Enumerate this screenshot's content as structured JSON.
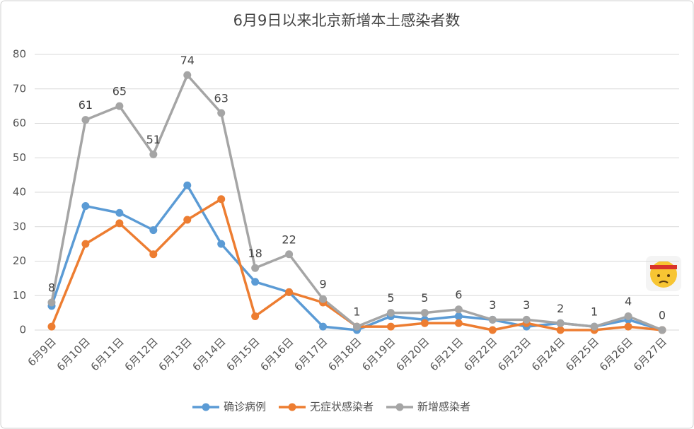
{
  "chart_data": {
    "type": "line",
    "title": "6月9日以来北京新增本土感染者数",
    "categories": [
      "6月9日",
      "6月10日",
      "6月11日",
      "6月12日",
      "6月13日",
      "6月14日",
      "6月15日",
      "6月16日",
      "6月17日",
      "6月18日",
      "6月19日",
      "6月20日",
      "6月21日",
      "6月22日",
      "6月23日",
      "6月24日",
      "6月25日",
      "6月26日",
      "6月27日"
    ],
    "series": [
      {
        "name": "确诊病例",
        "color": "#5b9bd5",
        "values": [
          7,
          36,
          34,
          29,
          42,
          25,
          14,
          11,
          1,
          0,
          4,
          3,
          4,
          3,
          1,
          2,
          1,
          3,
          0
        ]
      },
      {
        "name": "无症状感染者",
        "color": "#ed7d31",
        "values": [
          1,
          25,
          31,
          22,
          32,
          38,
          4,
          11,
          8,
          1,
          1,
          2,
          2,
          0,
          2,
          0,
          0,
          1,
          0
        ]
      },
      {
        "name": "新增感染者",
        "color": "#a5a5a5",
        "values": [
          8,
          61,
          65,
          51,
          74,
          63,
          18,
          22,
          9,
          1,
          5,
          5,
          6,
          3,
          3,
          2,
          1,
          4,
          0
        ],
        "show_labels": true
      }
    ],
    "ylim": [
      0,
      80
    ],
    "yticks": [
      0,
      10,
      20,
      30,
      40,
      50,
      60,
      70,
      80
    ],
    "grid": true,
    "legend": "bottom"
  }
}
